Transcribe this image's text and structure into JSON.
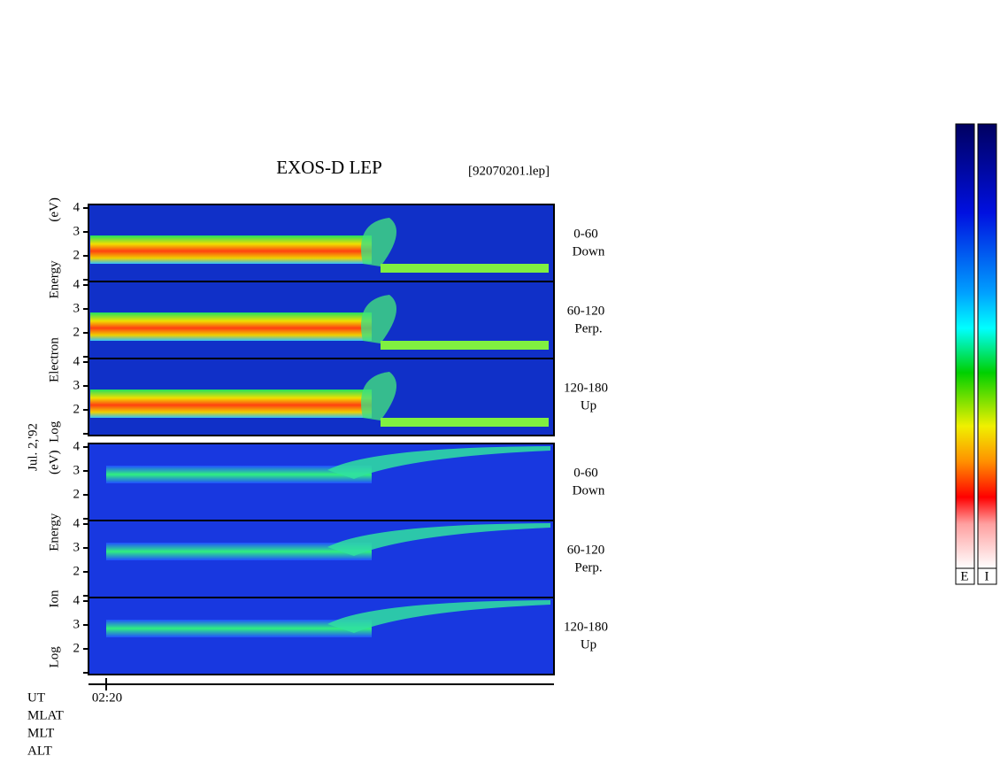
{
  "title": "EXOS-D LEP",
  "file": "[92070201.lep]",
  "date_label": "Jul. 2,'92",
  "groups": [
    {
      "axis_label": "Log Electron Energy (eV)",
      "yticks": [
        4,
        3,
        2
      ],
      "panels": [
        {
          "pitch": "0-60",
          "direction": "Down"
        },
        {
          "pitch": "60-120",
          "direction": "Perp."
        },
        {
          "pitch": "120-180",
          "direction": "Up"
        }
      ]
    },
    {
      "axis_label": "Log Ion Energy (eV)",
      "yticks": [
        4,
        3,
        2
      ],
      "panels": [
        {
          "pitch": "0-60",
          "direction": "Down"
        },
        {
          "pitch": "60-120",
          "direction": "Perp."
        },
        {
          "pitch": "120-180",
          "direction": "Up"
        }
      ]
    }
  ],
  "time_tick": "02:20",
  "row_labels": [
    "UT",
    "MLAT",
    "MLT",
    "ALT"
  ],
  "colorbar_labels": [
    "E",
    "I"
  ]
}
